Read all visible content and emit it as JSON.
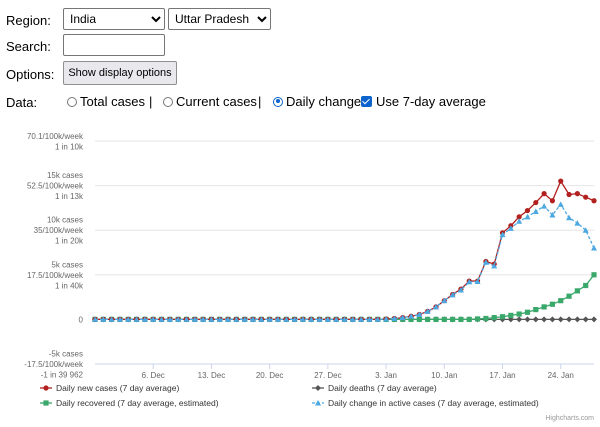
{
  "form": {
    "region_label": "Region:",
    "region_value": "India",
    "subregion_value": "Uttar Pradesh",
    "search_label": "Search:",
    "search_value": "",
    "options_label": "Options:",
    "options_button": "Show display options",
    "data_label": "Data:",
    "radio_total": "Total cases",
    "radio_current": "Current cases",
    "radio_daily": "Daily change",
    "checkbox_avg": "Use 7-day average",
    "separator": "|",
    "selected_mode": "Daily change",
    "avg_checked": true
  },
  "credit": "Highcharts.com",
  "chart_data": {
    "type": "line",
    "y_ticks": [
      [
        "70.1/100k/week",
        "1 in 10k"
      ],
      [
        "15k cases",
        "52.5/100k/week",
        "1 in 13k"
      ],
      [
        "10k cases",
        "35/100k/week",
        "1 in 20k"
      ],
      [
        "5k cases",
        "17.5/100k/week",
        "1 in 40k"
      ],
      [
        "0"
      ],
      [
        "-5k cases",
        "-17.5/100k/week",
        "-1 in 39 962"
      ]
    ],
    "x_tick_labels": [
      "6. Dec",
      "13. Dec",
      "20. Dec",
      "27. Dec",
      "3. Jan",
      "10. Jan",
      "17. Jan",
      "24. Jan"
    ],
    "x_tick_index": [
      7,
      14,
      21,
      28,
      35,
      42,
      49,
      56
    ],
    "ylim": [
      -5000,
      20000
    ],
    "series": [
      {
        "name": "Daily new cases (7 day average)",
        "color": "#b2201f",
        "marker": "circle",
        "values": [
          0,
          0,
          0,
          0,
          0,
          0,
          0,
          0,
          0,
          0,
          0,
          0,
          0,
          0,
          0,
          0,
          0,
          0,
          0,
          0,
          0,
          0,
          0,
          0,
          0,
          0,
          0,
          0,
          0,
          0,
          0,
          0,
          0,
          0,
          0,
          50,
          100,
          200,
          350,
          550,
          900,
          1400,
          2100,
          2800,
          3400,
          4300,
          4300,
          6500,
          6200,
          9700,
          10500,
          11500,
          12200,
          13100,
          14100,
          13300,
          15500,
          14000,
          14100,
          13700,
          13300
        ]
      },
      {
        "name": "Daily deaths (7 day average)",
        "color": "#555555",
        "marker": "diamond",
        "values": [
          0,
          0,
          0,
          0,
          0,
          0,
          0,
          0,
          0,
          0,
          0,
          0,
          0,
          0,
          0,
          0,
          0,
          0,
          0,
          0,
          0,
          0,
          0,
          0,
          0,
          0,
          0,
          0,
          0,
          0,
          0,
          0,
          0,
          0,
          0,
          0,
          0,
          0,
          0,
          0,
          0,
          0,
          0,
          0,
          0,
          0,
          0,
          0,
          0,
          0,
          0,
          0,
          0,
          0,
          0,
          0,
          0,
          0,
          0,
          0,
          0
        ]
      },
      {
        "name": "Daily recovered (7 day average, estimated)",
        "color": "#3aa86b",
        "marker": "square",
        "values": [
          0,
          0,
          0,
          0,
          0,
          0,
          0,
          0,
          0,
          0,
          0,
          0,
          0,
          0,
          0,
          0,
          0,
          0,
          0,
          0,
          0,
          0,
          0,
          0,
          0,
          0,
          0,
          0,
          0,
          0,
          0,
          0,
          0,
          0,
          0,
          0,
          0,
          0,
          0,
          0,
          0,
          0,
          0,
          0,
          0,
          0,
          50,
          100,
          200,
          300,
          450,
          600,
          800,
          1100,
          1400,
          1700,
          2100,
          2600,
          3200,
          3800,
          5000
        ]
      },
      {
        "name": "Daily change in active cases (7 day average, estimated)",
        "color": "#4ba8e0",
        "marker": "triangle",
        "values": [
          0,
          0,
          0,
          0,
          0,
          0,
          0,
          0,
          0,
          0,
          0,
          0,
          0,
          0,
          0,
          0,
          0,
          0,
          0,
          0,
          0,
          0,
          0,
          0,
          0,
          0,
          0,
          0,
          0,
          0,
          0,
          0,
          0,
          0,
          0,
          50,
          100,
          200,
          350,
          550,
          900,
          1400,
          2100,
          2750,
          3300,
          4200,
          4250,
          6400,
          6000,
          9500,
          10200,
          11000,
          11500,
          12100,
          12700,
          11700,
          12900,
          11400,
          10800,
          10000,
          8000
        ]
      }
    ]
  }
}
